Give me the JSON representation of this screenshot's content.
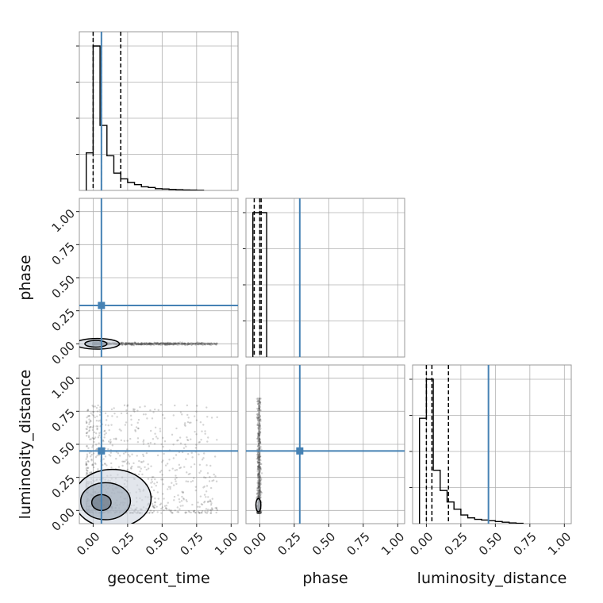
{
  "chart_data": {
    "type": "corner",
    "params": [
      "geocent_time",
      "phase",
      "luminosity_distance"
    ],
    "axis_labels": {
      "x": [
        "geocent_time",
        "phase",
        "luminosity_distance"
      ],
      "y": [
        "phase",
        "luminosity_distance"
      ]
    },
    "xlim": [
      -0.1,
      1.05
    ],
    "ylim": [
      -0.1,
      1.1
    ],
    "ticks": [
      0.0,
      0.25,
      0.5,
      0.75,
      1.0
    ],
    "tick_labels": [
      "0.00",
      "0.25",
      "0.50",
      "0.75",
      "1.00"
    ],
    "grid": true,
    "colors": {
      "truth": "#4682b4",
      "hist": "#000000",
      "quantile": "#000000",
      "scatter": "#555555",
      "grid": "#b0b0b0",
      "frame": "#999999"
    },
    "truths": {
      "geocent_time": 0.06,
      "phase": 0.29,
      "luminosity_distance": 0.45
    },
    "histograms": [
      {
        "param": "geocent_time",
        "bin_edges": [
          -0.05,
          0.0,
          0.05,
          0.1,
          0.15,
          0.2,
          0.25,
          0.3,
          0.35,
          0.4,
          0.45,
          0.5,
          0.55,
          0.6,
          0.65,
          0.7,
          0.75,
          0.8
        ],
        "counts": [
          0.26,
          1.0,
          0.45,
          0.24,
          0.12,
          0.08,
          0.055,
          0.04,
          0.025,
          0.02,
          0.012,
          0.01,
          0.007,
          0.005,
          0.003,
          0.002,
          0.001
        ],
        "quantiles": [
          0.0,
          0.06,
          0.2
        ]
      },
      {
        "param": "phase",
        "bin_edges": [
          -0.05,
          0.0,
          0.05
        ],
        "counts": [
          1.0,
          1.0
        ],
        "quantiles": [
          -0.04,
          0.0,
          0.01
        ]
      },
      {
        "param": "luminosity_distance",
        "bin_edges": [
          -0.05,
          0.0,
          0.05,
          0.1,
          0.15,
          0.2,
          0.25,
          0.3,
          0.35,
          0.4,
          0.45,
          0.5,
          0.55,
          0.6,
          0.65,
          0.7
        ],
        "counts": [
          0.73,
          1.0,
          0.37,
          0.23,
          0.15,
          0.1,
          0.06,
          0.04,
          0.03,
          0.025,
          0.02,
          0.015,
          0.01,
          0.005,
          0.002
        ],
        "quantiles": [
          0.0,
          0.04,
          0.16
        ]
      }
    ],
    "joint_2d": [
      {
        "x": "geocent_time",
        "y": "phase",
        "scatter_extent": {
          "x": [
            0.0,
            0.9
          ],
          "y": [
            -0.01,
            0.01
          ]
        },
        "contours": [
          {
            "cx": 0.02,
            "cy": 0.0,
            "rx": 0.08,
            "ry": 0.025
          },
          {
            "cx": 0.03,
            "cy": 0.0,
            "rx": 0.16,
            "ry": 0.04
          }
        ]
      },
      {
        "x": "geocent_time",
        "y": "luminosity_distance",
        "scatter_extent": {
          "x": [
            -0.05,
            0.9
          ],
          "y": [
            -0.02,
            0.8
          ]
        },
        "contours": [
          {
            "cx": 0.06,
            "cy": 0.06,
            "rx": 0.07,
            "ry": 0.06
          },
          {
            "cx": 0.09,
            "cy": 0.07,
            "rx": 0.18,
            "ry": 0.14
          },
          {
            "cx": 0.14,
            "cy": 0.09,
            "rx": 0.28,
            "ry": 0.22
          }
        ]
      },
      {
        "x": "phase",
        "y": "luminosity_distance",
        "scatter_extent": {
          "x": [
            -0.02,
            0.01
          ],
          "y": [
            -0.02,
            0.85
          ]
        },
        "contours": [
          {
            "cx": -0.01,
            "cy": 0.04,
            "rx": 0.018,
            "ry": 0.05
          }
        ]
      }
    ]
  }
}
